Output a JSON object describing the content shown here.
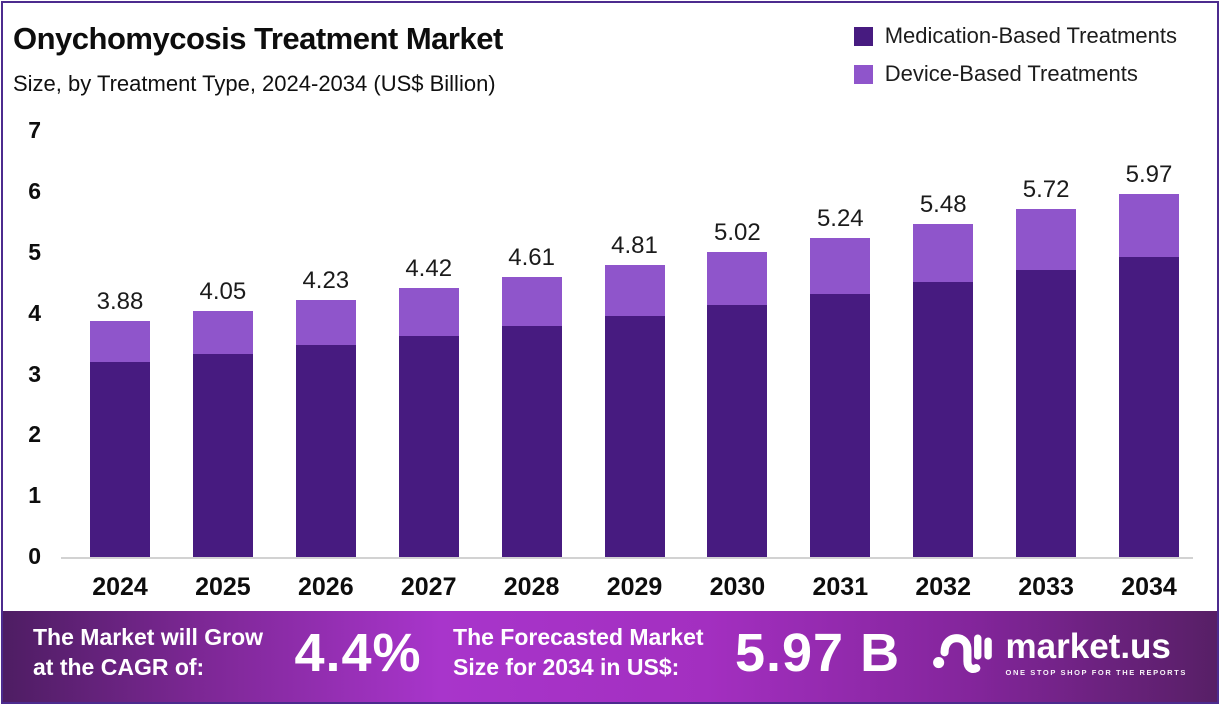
{
  "header": {
    "title": "Onychomycosis Treatment Market",
    "subtitle": "Size, by Treatment Type, 2024-2034 (US$ Billion)"
  },
  "colors": {
    "medication": "#471b80",
    "device": "#8f55cb",
    "banner_gradient_mid": "#a835cb",
    "frame_border": "#4c2b8e"
  },
  "legend": {
    "items": [
      {
        "label": "Medication-Based Treatments",
        "color": "#471b80"
      },
      {
        "label": "Device-Based Treatments",
        "color": "#8f55cb"
      }
    ]
  },
  "chart_data": {
    "type": "bar",
    "stacked": true,
    "title": "Onychomycosis Treatment Market Size, by Treatment Type, 2024-2034 (US$ Billion)",
    "categories": [
      "2024",
      "2025",
      "2026",
      "2027",
      "2028",
      "2029",
      "2030",
      "2031",
      "2032",
      "2033",
      "2034"
    ],
    "series": [
      {
        "name": "Medication-Based Treatments",
        "color": "#471b80",
        "values": [
          3.2,
          3.34,
          3.49,
          3.64,
          3.8,
          3.97,
          4.14,
          4.32,
          4.52,
          4.72,
          4.93
        ]
      },
      {
        "name": "Device-Based Treatments",
        "color": "#8f55cb",
        "values": [
          0.68,
          0.71,
          0.74,
          0.78,
          0.81,
          0.84,
          0.88,
          0.92,
          0.96,
          1.0,
          1.04
        ]
      }
    ],
    "totals": [
      3.88,
      4.05,
      4.23,
      4.42,
      4.61,
      4.81,
      5.02,
      5.24,
      5.48,
      5.72,
      5.97
    ],
    "xlabel": "",
    "ylabel": "",
    "ylim": [
      0,
      7
    ],
    "yticks": [
      0,
      1,
      2,
      3,
      4,
      5,
      6,
      7
    ],
    "grid": false,
    "legend_position": "top-right"
  },
  "footer": {
    "cagr_label_line1": "The Market will Grow",
    "cagr_label_line2": "at the CAGR of:",
    "cagr_value": "4.4%",
    "forecast_label_line1": "The Forecasted Market",
    "forecast_label_line2": "Size for 2034 in US$:",
    "forecast_value": "5.97 B",
    "brand_name": "market.us",
    "brand_tagline": "ONE STOP SHOP FOR THE REPORTS"
  }
}
